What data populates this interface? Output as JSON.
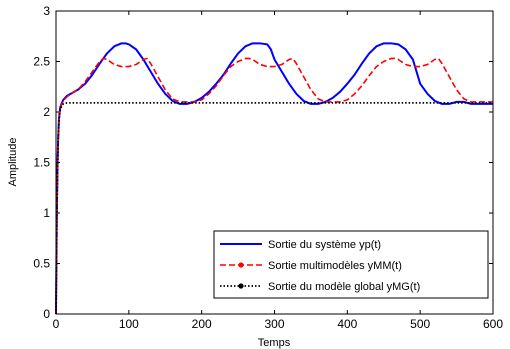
{
  "chart_data": {
    "type": "line",
    "title": "",
    "xlabel": "Temps",
    "ylabel": "Amplitude",
    "xlim": [
      0,
      600
    ],
    "ylim": [
      0,
      3
    ],
    "xticks": [
      0,
      100,
      200,
      300,
      400,
      500,
      600
    ],
    "yticks": [
      0,
      0.5,
      1,
      1.5,
      2,
      2.5,
      3
    ],
    "xtick_labels": [
      "0",
      "100",
      "200",
      "300",
      "400",
      "500",
      "600"
    ],
    "ytick_labels": [
      "0",
      "0.5",
      "1",
      "1.5",
      "2",
      "2.5",
      "3"
    ],
    "grid": false,
    "legend_position": "bottom-right",
    "series": [
      {
        "name": "Sortie du système yp(t)",
        "color": "#0000ff",
        "style": "solid",
        "x": [
          0,
          1,
          2,
          3,
          4,
          5,
          6,
          8,
          10,
          15,
          20,
          30,
          40,
          50,
          60,
          70,
          80,
          90,
          95,
          100,
          110,
          120,
          130,
          140,
          150,
          160,
          170,
          180,
          190,
          200,
          210,
          220,
          230,
          240,
          250,
          260,
          270,
          280,
          290,
          295,
          300,
          310,
          320,
          330,
          340,
          350,
          360,
          370,
          380,
          390,
          400,
          410,
          420,
          430,
          440,
          450,
          460,
          470,
          480,
          490,
          495,
          500,
          510,
          520,
          530,
          540,
          550,
          560,
          570,
          580,
          590,
          600
        ],
        "y": [
          0,
          0.9,
          1.45,
          1.75,
          1.92,
          2.0,
          2.05,
          2.09,
          2.12,
          2.16,
          2.18,
          2.22,
          2.28,
          2.37,
          2.48,
          2.58,
          2.65,
          2.68,
          2.68,
          2.67,
          2.62,
          2.52,
          2.4,
          2.28,
          2.18,
          2.11,
          2.08,
          2.08,
          2.1,
          2.14,
          2.2,
          2.28,
          2.37,
          2.48,
          2.58,
          2.65,
          2.68,
          2.68,
          2.67,
          2.62,
          2.52,
          2.4,
          2.28,
          2.18,
          2.11,
          2.08,
          2.08,
          2.1,
          2.14,
          2.2,
          2.28,
          2.37,
          2.48,
          2.58,
          2.65,
          2.68,
          2.68,
          2.67,
          2.62,
          2.52,
          2.4,
          2.28,
          2.18,
          2.11,
          2.08,
          2.08,
          2.1,
          2.1,
          2.08,
          2.08,
          2.08,
          2.08
        ]
      },
      {
        "name": "Sortie multimodèles yMM(t)",
        "color": "#ff0000",
        "style": "dashed",
        "x": [
          0,
          1,
          2,
          3,
          4,
          5,
          6,
          8,
          10,
          15,
          20,
          30,
          40,
          50,
          60,
          65,
          70,
          80,
          90,
          100,
          110,
          120,
          125,
          130,
          140,
          150,
          160,
          170,
          180,
          190,
          200,
          210,
          220,
          230,
          240,
          250,
          260,
          265,
          270,
          280,
          290,
          300,
          310,
          320,
          325,
          330,
          340,
          350,
          360,
          370,
          380,
          390,
          400,
          410,
          420,
          430,
          440,
          450,
          460,
          465,
          470,
          480,
          490,
          500,
          510,
          520,
          525,
          530,
          540,
          550,
          560,
          570,
          580,
          590,
          600
        ],
        "y": [
          0,
          0.85,
          1.4,
          1.72,
          1.9,
          1.98,
          2.04,
          2.08,
          2.11,
          2.15,
          2.18,
          2.22,
          2.3,
          2.4,
          2.5,
          2.53,
          2.52,
          2.47,
          2.45,
          2.45,
          2.47,
          2.52,
          2.53,
          2.48,
          2.35,
          2.22,
          2.13,
          2.1,
          2.1,
          2.1,
          2.12,
          2.18,
          2.26,
          2.36,
          2.45,
          2.5,
          2.53,
          2.53,
          2.52,
          2.47,
          2.45,
          2.45,
          2.47,
          2.52,
          2.53,
          2.48,
          2.35,
          2.22,
          2.13,
          2.1,
          2.1,
          2.1,
          2.12,
          2.18,
          2.26,
          2.36,
          2.45,
          2.5,
          2.53,
          2.53,
          2.52,
          2.47,
          2.45,
          2.45,
          2.47,
          2.52,
          2.53,
          2.48,
          2.35,
          2.22,
          2.13,
          2.1,
          2.1,
          2.1,
          2.1
        ]
      },
      {
        "name": "Sortie du modèle global yMG(t)",
        "color": "#000000",
        "style": "dotted",
        "x": [
          0,
          1,
          2,
          3,
          4,
          5,
          6,
          8,
          10,
          15,
          20,
          600
        ],
        "y": [
          0,
          0.85,
          1.4,
          1.72,
          1.9,
          1.98,
          2.03,
          2.06,
          2.08,
          2.09,
          2.09,
          2.09
        ]
      }
    ]
  }
}
